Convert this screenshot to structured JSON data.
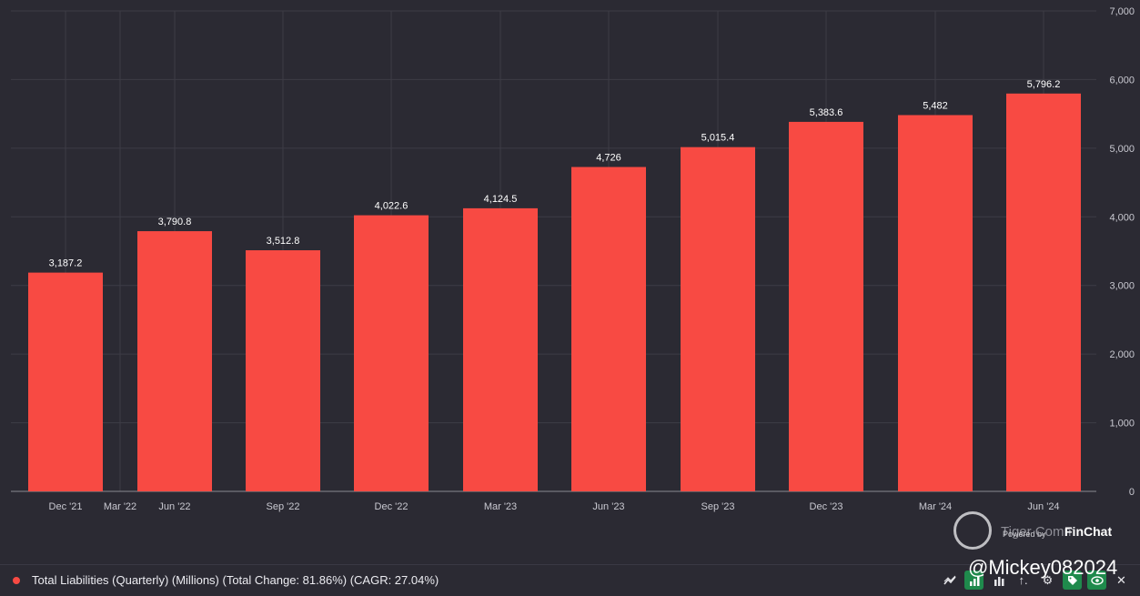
{
  "chart_data": {
    "type": "bar",
    "title": "",
    "xlabel": "",
    "ylabel": "",
    "categories": [
      "Dec '21",
      "Jun '22",
      "Sep '22",
      "Dec '22",
      "Mar '23",
      "Jun '23",
      "Sep '23",
      "Dec '23",
      "Mar '24",
      "Jun '24"
    ],
    "x_tick_labels": [
      "Dec '21",
      "Mar '22",
      "Jun '22",
      "Sep '22",
      "Dec '22",
      "Mar '23",
      "Jun '23",
      "Sep '23",
      "Dec '23",
      "Mar '24",
      "Jun '24"
    ],
    "values": [
      3187.2,
      3790.8,
      3512.8,
      4022.6,
      4124.5,
      4726,
      5015.4,
      5383.6,
      5482,
      5796.2
    ],
    "data_labels": [
      "3,187.2",
      "3,790.8",
      "3,512.8",
      "4,022.6",
      "4,124.5",
      "4,726",
      "5,015.4",
      "5,383.6",
      "5,482",
      "5,796.2"
    ],
    "ylim": [
      0,
      7000
    ],
    "y_ticks": [
      0,
      1000,
      2000,
      3000,
      4000,
      5000,
      6000,
      7000
    ],
    "y_tick_labels": [
      "0",
      "1,000",
      "2,000",
      "3,000",
      "4,000",
      "5,000",
      "6,000",
      "7,000"
    ],
    "y_axis_side": "right",
    "grid": true,
    "bar_color": "#f84a43",
    "series": [
      {
        "name": "Total Liabilities (Quarterly) (Millions) (Total Change: 81.86%) (CAGR: 27.04%)",
        "values": [
          3187.2,
          3790.8,
          3512.8,
          4022.6,
          4124.5,
          4726,
          5015.4,
          5383.6,
          5482,
          5796.2
        ]
      }
    ],
    "legend_position": "bottom-left"
  },
  "legend": {
    "label": "Total Liabilities (Quarterly) (Millions) (Total Change: 81.86%) (CAGR: 27.04%)"
  },
  "watermark": {
    "text": "Tiger Comm",
    "powered": "Powered by",
    "brand": "FinChat",
    "handle": "@Mickey082024"
  },
  "toolbar": {
    "icons": [
      "trend-icon",
      "bar-chart-icon",
      "bars-icon",
      "sort-icon",
      "gear-icon",
      "tag-icon",
      "eye-icon",
      "close-icon"
    ],
    "sort_label": "↑."
  },
  "colors": {
    "background": "#2b2a33",
    "bar": "#f84a43",
    "grid": "#3d3c46",
    "text": "#c9c9d1"
  }
}
